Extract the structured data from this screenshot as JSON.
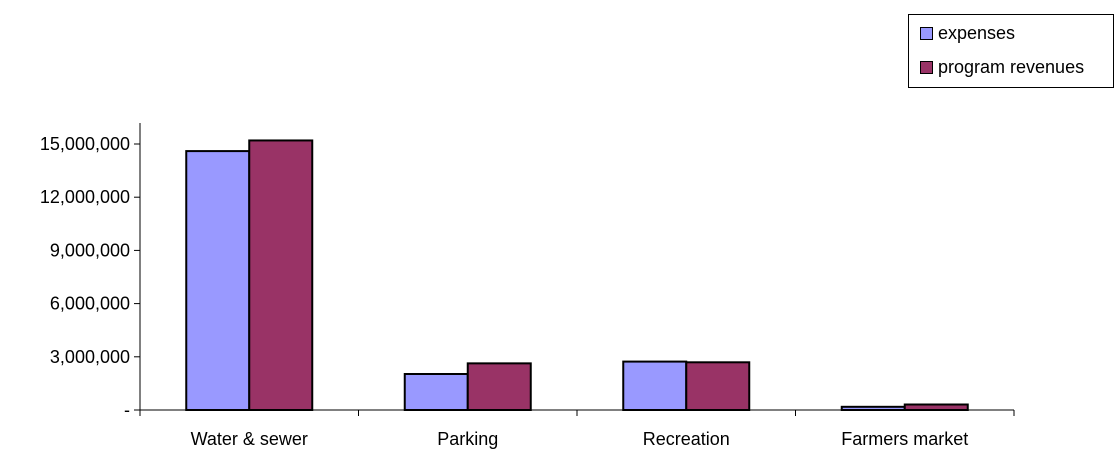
{
  "chart_data": {
    "type": "bar",
    "title": "",
    "xlabel": "",
    "ylabel": "",
    "categories": [
      "Water & sewer",
      "Parking",
      "Recreation",
      "Farmers market"
    ],
    "series": [
      {
        "name": "expenses",
        "color": "#9999ff",
        "values": [
          14600000,
          2030000,
          2730000,
          180000
        ]
      },
      {
        "name": "program revenues",
        "color": "#993366",
        "values": [
          15200000,
          2630000,
          2690000,
          310000
        ]
      }
    ],
    "ylim": [
      0,
      15000000
    ],
    "yticks": [
      0,
      3000000,
      6000000,
      9000000,
      12000000,
      15000000
    ],
    "ytick_labels": [
      "-",
      "3,000,000",
      "6,000,000",
      "9,000,000",
      "12,000,000",
      "15,000,000"
    ],
    "grid": false,
    "legend_position": "top-right"
  }
}
